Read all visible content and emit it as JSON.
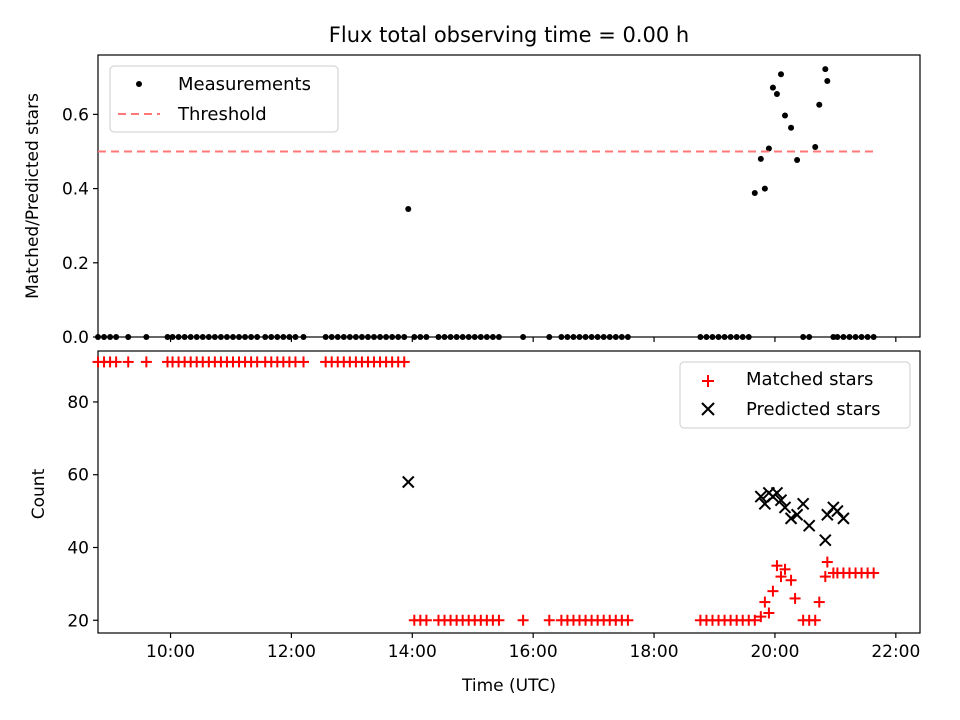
{
  "chart_data": [
    {
      "type": "scatter",
      "title": "Flux total observing time = 0.00 h",
      "xlabel": "",
      "ylabel": "Matched/Predicted stars",
      "xlim": [
        "08:48",
        "22:24"
      ],
      "ylim": [
        0,
        0.76
      ],
      "yticks": [
        "0.0",
        "0.2",
        "0.4",
        "0.6"
      ],
      "legend_position": "upper left",
      "series": [
        {
          "name": "Measurements",
          "marker": "dot",
          "color": "#000000",
          "x": [
            "08:48",
            "08:54",
            "09:00",
            "09:06",
            "09:18",
            "09:36",
            "09:57",
            "10:02",
            "10:08",
            "10:14",
            "10:20",
            "10:26",
            "10:32",
            "10:38",
            "10:44",
            "10:50",
            "10:56",
            "11:02",
            "11:08",
            "11:14",
            "11:20",
            "11:26",
            "11:34",
            "11:40",
            "11:46",
            "11:52",
            "11:58",
            "12:04",
            "12:12",
            "12:34",
            "12:40",
            "12:46",
            "12:52",
            "12:58",
            "13:04",
            "13:10",
            "13:16",
            "13:22",
            "13:28",
            "13:34",
            "13:40",
            "13:46",
            "13:52",
            "13:56",
            "14:02",
            "14:08",
            "14:14",
            "14:26",
            "14:32",
            "14:38",
            "14:44",
            "14:50",
            "14:56",
            "15:02",
            "15:08",
            "15:14",
            "15:20",
            "15:26",
            "15:50",
            "16:16",
            "16:28",
            "16:34",
            "16:40",
            "16:46",
            "16:52",
            "16:58",
            "17:04",
            "17:10",
            "17:16",
            "17:22",
            "17:28",
            "17:34",
            "18:46",
            "18:52",
            "18:58",
            "19:04",
            "19:10",
            "19:16",
            "19:22",
            "19:28",
            "19:34",
            "19:40",
            "19:46",
            "19:50",
            "19:54",
            "19:58",
            "20:02",
            "20:06",
            "20:10",
            "20:16",
            "20:22",
            "20:28",
            "20:34",
            "20:40",
            "20:44",
            "20:50",
            "20:52",
            "20:58",
            "21:02",
            "21:08",
            "21:14",
            "21:20",
            "21:26",
            "21:32",
            "21:38"
          ],
          "y": [
            0,
            0,
            0,
            0,
            0,
            0,
            0,
            0,
            0,
            0,
            0,
            0,
            0,
            0,
            0,
            0,
            0,
            0,
            0,
            0,
            0,
            0,
            0,
            0,
            0,
            0,
            0,
            0,
            0,
            0,
            0,
            0,
            0,
            0,
            0,
            0,
            0,
            0,
            0,
            0,
            0,
            0,
            0,
            0.345,
            0,
            0,
            0,
            0,
            0,
            0,
            0,
            0,
            0,
            0,
            0,
            0,
            0,
            0,
            0,
            0,
            0,
            0,
            0,
            0,
            0,
            0,
            0,
            0,
            0,
            0,
            0,
            0,
            0,
            0,
            0,
            0,
            0,
            0,
            0,
            0,
            0,
            0.388,
            0.48,
            0.4,
            0.508,
            0.672,
            0.655,
            0.708,
            0.597,
            0.564,
            0.477,
            0,
            0,
            0.512,
            0.626,
            0.722,
            0.69,
            0,
            0,
            0,
            0,
            0,
            0,
            0,
            0
          ]
        },
        {
          "name": "Threshold",
          "style": "dashed",
          "color": "#ff7777",
          "x": [
            "08:48",
            "21:38"
          ],
          "y": [
            0.5,
            0.5
          ]
        }
      ]
    },
    {
      "type": "scatter",
      "title": "",
      "xlabel": "Time (UTC)",
      "ylabel": "Count",
      "xlim": [
        "08:48",
        "22:24"
      ],
      "ylim": [
        16.5,
        94
      ],
      "yticks": [
        "20",
        "40",
        "60",
        "80"
      ],
      "xticks": [
        "10:00",
        "12:00",
        "14:00",
        "16:00",
        "18:00",
        "20:00",
        "22:00"
      ],
      "legend_position": "upper right",
      "series": [
        {
          "name": "Matched stars",
          "marker": "plus",
          "color": "#ff0000",
          "x": [
            "08:48",
            "08:54",
            "09:00",
            "09:06",
            "09:18",
            "09:36",
            "09:57",
            "10:02",
            "10:08",
            "10:14",
            "10:20",
            "10:26",
            "10:32",
            "10:38",
            "10:44",
            "10:50",
            "10:56",
            "11:02",
            "11:08",
            "11:14",
            "11:20",
            "11:26",
            "11:34",
            "11:40",
            "11:46",
            "11:52",
            "11:58",
            "12:04",
            "12:12",
            "12:34",
            "12:40",
            "12:46",
            "12:52",
            "12:58",
            "13:04",
            "13:10",
            "13:16",
            "13:22",
            "13:28",
            "13:34",
            "13:40",
            "13:46",
            "13:52",
            "14:02",
            "14:08",
            "14:14",
            "14:26",
            "14:32",
            "14:38",
            "14:44",
            "14:50",
            "14:56",
            "15:02",
            "15:08",
            "15:14",
            "15:20",
            "15:26",
            "15:50",
            "16:16",
            "16:28",
            "16:34",
            "16:40",
            "16:46",
            "16:52",
            "16:58",
            "17:04",
            "17:10",
            "17:16",
            "17:22",
            "17:28",
            "17:34",
            "18:46",
            "18:52",
            "18:58",
            "19:04",
            "19:10",
            "19:16",
            "19:22",
            "19:28",
            "19:34",
            "19:40",
            "19:46",
            "19:50",
            "19:54",
            "19:58",
            "20:02",
            "20:06",
            "20:10",
            "20:16",
            "20:20",
            "20:28",
            "20:34",
            "20:40",
            "20:44",
            "20:50",
            "20:52",
            "20:58",
            "21:02",
            "21:08",
            "21:14",
            "21:20",
            "21:26",
            "21:32",
            "21:38"
          ],
          "y": [
            91,
            91,
            91,
            91,
            91,
            91,
            91,
            91,
            91,
            91,
            91,
            91,
            91,
            91,
            91,
            91,
            91,
            91,
            91,
            91,
            91,
            91,
            91,
            91,
            91,
            91,
            91,
            91,
            91,
            91,
            91,
            91,
            91,
            91,
            91,
            91,
            91,
            91,
            91,
            91,
            91,
            91,
            91,
            20,
            20,
            20,
            20,
            20,
            20,
            20,
            20,
            20,
            20,
            20,
            20,
            20,
            20,
            20,
            20,
            20,
            20,
            20,
            20,
            20,
            20,
            20,
            20,
            20,
            20,
            20,
            20,
            20,
            20,
            20,
            20,
            20,
            20,
            20,
            20,
            20,
            20,
            21,
            25,
            22,
            28,
            35,
            32,
            34,
            31,
            26,
            20,
            20,
            20,
            25,
            32,
            36,
            33,
            33,
            33,
            33,
            33,
            33,
            33,
            33
          ]
        },
        {
          "name": "Predicted stars",
          "marker": "x",
          "color": "#000000",
          "x": [
            "13:56",
            "19:46",
            "19:50",
            "19:54",
            "19:58",
            "20:02",
            "20:06",
            "20:10",
            "20:16",
            "20:22",
            "20:28",
            "20:34",
            "20:50",
            "20:52",
            "20:58",
            "21:02",
            "21:08"
          ],
          "y": [
            58,
            54,
            52,
            55,
            54,
            55,
            53,
            51,
            48,
            49,
            52,
            46,
            42,
            49,
            51,
            50,
            48
          ]
        }
      ]
    }
  ]
}
